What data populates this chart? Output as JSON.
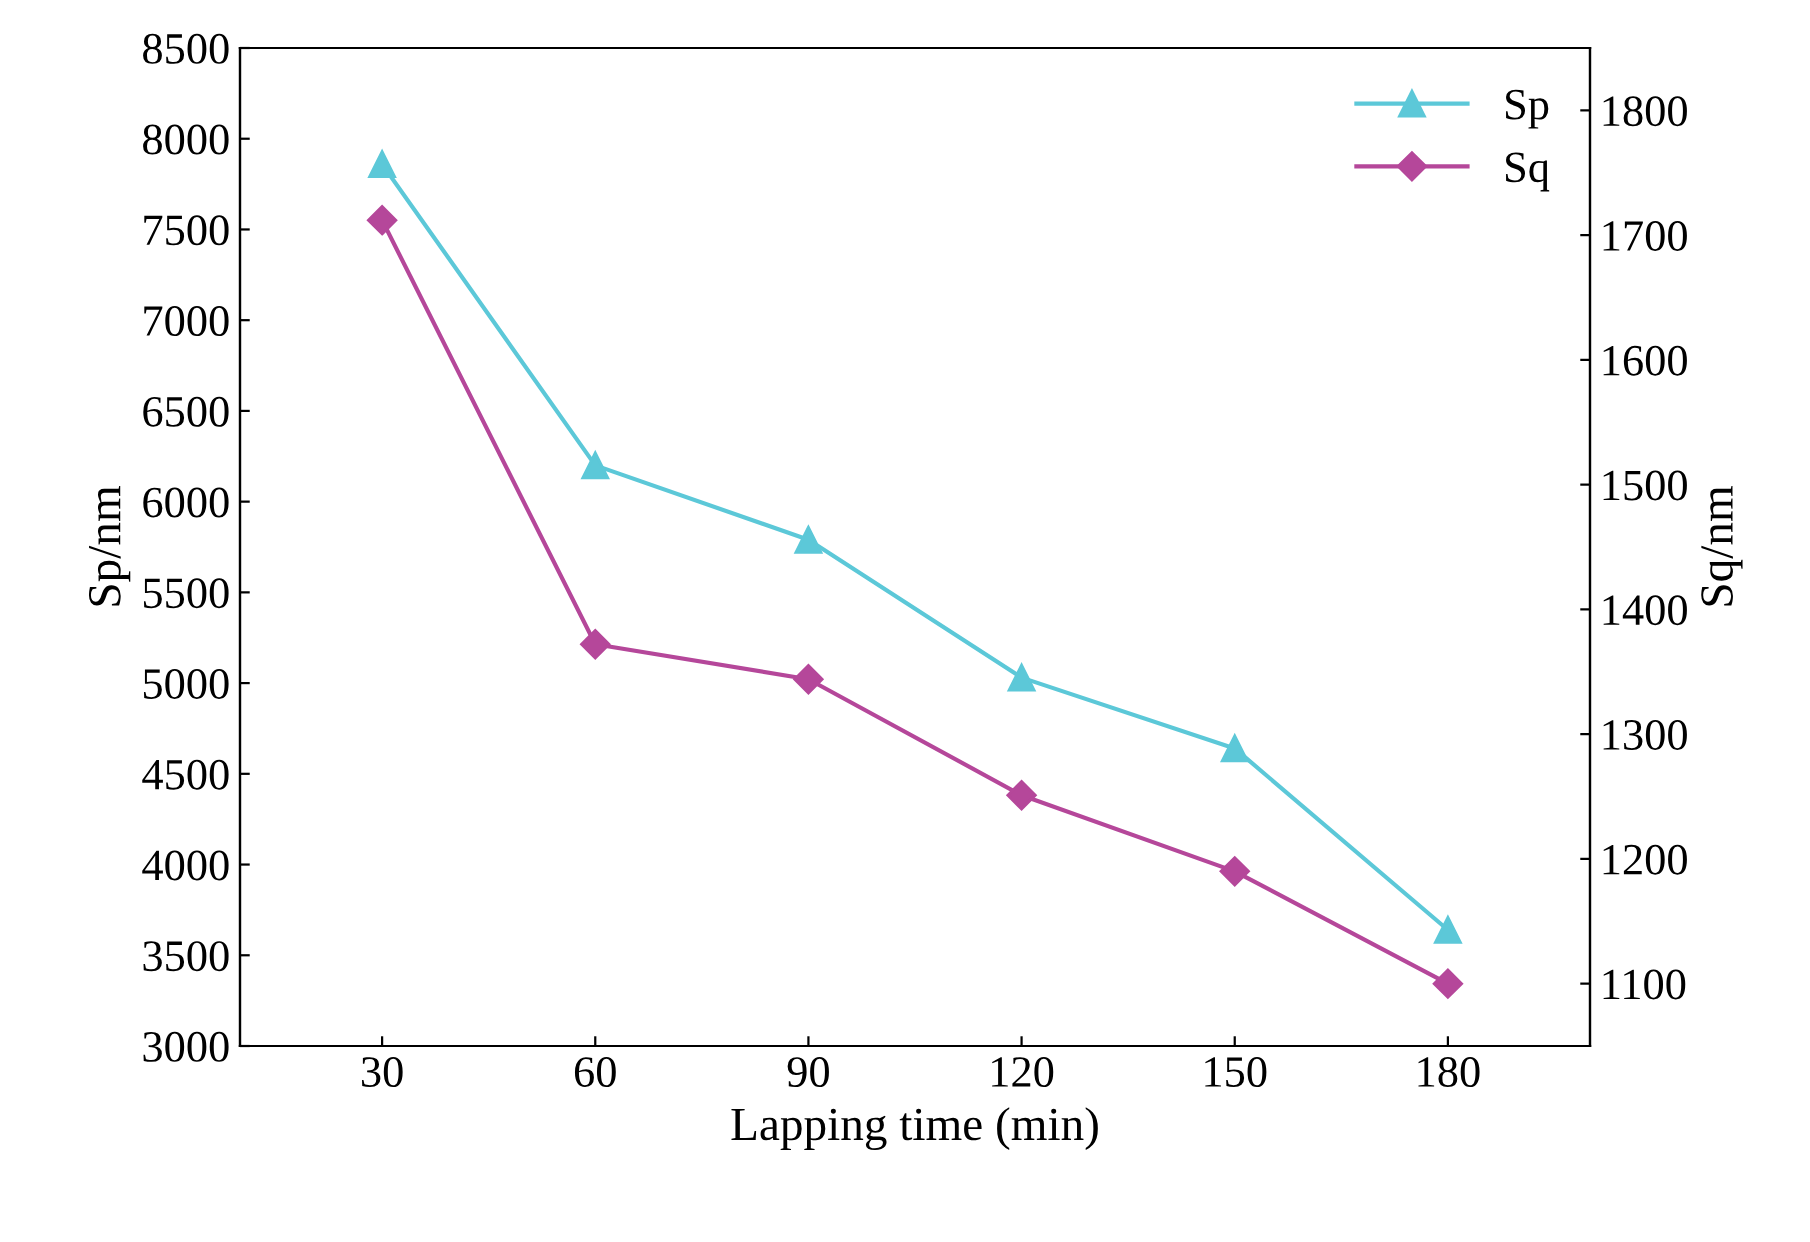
{
  "chart_data": {
    "type": "line",
    "xlabel": "Lapping time (min)",
    "ylabel": "Sp/nm",
    "y2label": "Sq/nm",
    "x": [
      30,
      60,
      90,
      120,
      150,
      180
    ],
    "series": [
      {
        "name": "Sp",
        "color": "#5cc8d8",
        "marker": "triangle",
        "values": [
          7860,
          6200,
          5790,
          5030,
          4640,
          3640
        ]
      },
      {
        "name": "Sq",
        "color": "#b5479a",
        "marker": "diamond",
        "axis": "y2",
        "values": [
          1712,
          1372,
          1344,
          1251,
          1190,
          1100
        ]
      }
    ],
    "xlim": [
      10,
      200
    ],
    "xticks": [
      30,
      60,
      90,
      120,
      150,
      180
    ],
    "ylim": [
      3000,
      8500
    ],
    "yticks": [
      3000,
      3500,
      4000,
      4500,
      5000,
      5500,
      6000,
      6500,
      7000,
      7500,
      8000,
      8500
    ],
    "y2lim": [
      1050,
      1850
    ],
    "y2ticks": [
      1100,
      1200,
      1300,
      1400,
      1500,
      1600,
      1700,
      1800
    ],
    "grid": false,
    "legend": "top right",
    "line_style": "solid"
  }
}
